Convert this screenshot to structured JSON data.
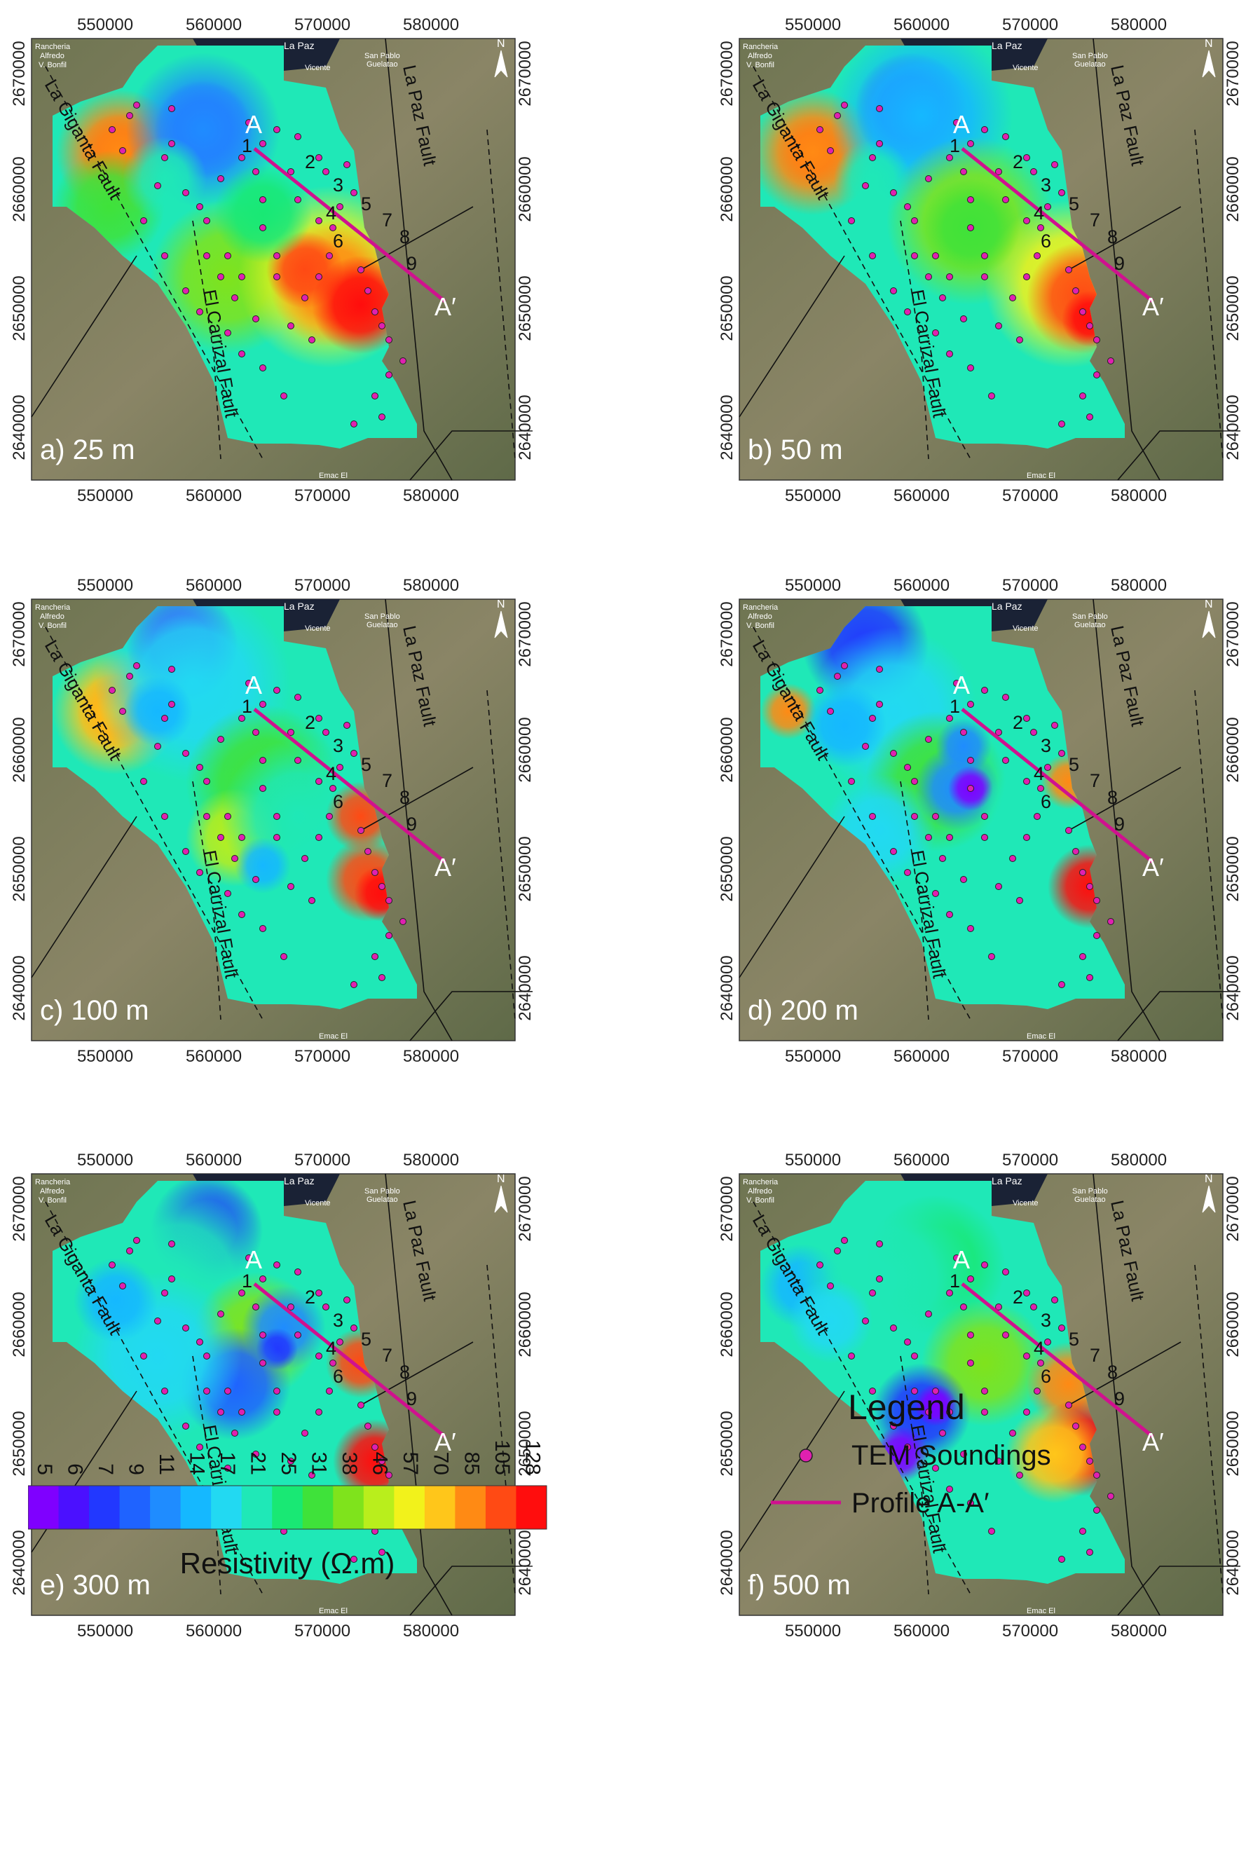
{
  "x_ticks": [
    "550000",
    "560000",
    "570000",
    "580000"
  ],
  "y_ticks": [
    "2670000",
    "2660000",
    "2650000",
    "2640000"
  ],
  "panels": [
    {
      "label": "a) 25 m"
    },
    {
      "label": "b) 50 m"
    },
    {
      "label": "c) 100 m"
    },
    {
      "label": "d) 200 m"
    },
    {
      "label": "e) 300 m"
    },
    {
      "label": "f) 500 m"
    }
  ],
  "map_labels": {
    "town_lapaz": "La Paz",
    "town_rancheria_1": "Rancheria",
    "town_rancheria_2": "Alfredo",
    "town_rancheria_3": "V. Bonfil",
    "town_sanpablo_1": "San Pablo",
    "town_sanpablo_2": "Guelatao",
    "town_vicente": "Vicente",
    "town_bottom": "Emac El",
    "north": "N",
    "point_a": "A",
    "point_a_prime": "A′",
    "fault_giganta": "La Giganta Fault",
    "fault_lapaz": "La Paz Fault",
    "fault_carrizal": "El Carrizal Fault",
    "profile_numbers": [
      "1",
      "2",
      "3",
      "4",
      "5",
      "6",
      "7",
      "8",
      "9"
    ]
  },
  "colorbar": {
    "title": "Resistivity (Ω.m)",
    "values": [
      "5",
      "6",
      "7",
      "9",
      "11",
      "14",
      "17",
      "21",
      "25",
      "31",
      "38",
      "46",
      "57",
      "70",
      "85",
      "105",
      "128"
    ],
    "colors": [
      "#7f00ff",
      "#4b10ff",
      "#2238ff",
      "#1f63ff",
      "#1f8cff",
      "#15b8ff",
      "#22d9f2",
      "#1fe8b7",
      "#19e874",
      "#3fe23a",
      "#7fe31c",
      "#b9ee1c",
      "#f2f21b",
      "#ffc61a",
      "#ff8a14",
      "#ff4a14",
      "#ff0d0d"
    ]
  },
  "legend": {
    "title": "Legend",
    "soundings_label": "TEM Soundings",
    "profile_label": "Profile A-A′",
    "sounding_color": "#e020b0",
    "profile_color": "#d0118f"
  }
}
